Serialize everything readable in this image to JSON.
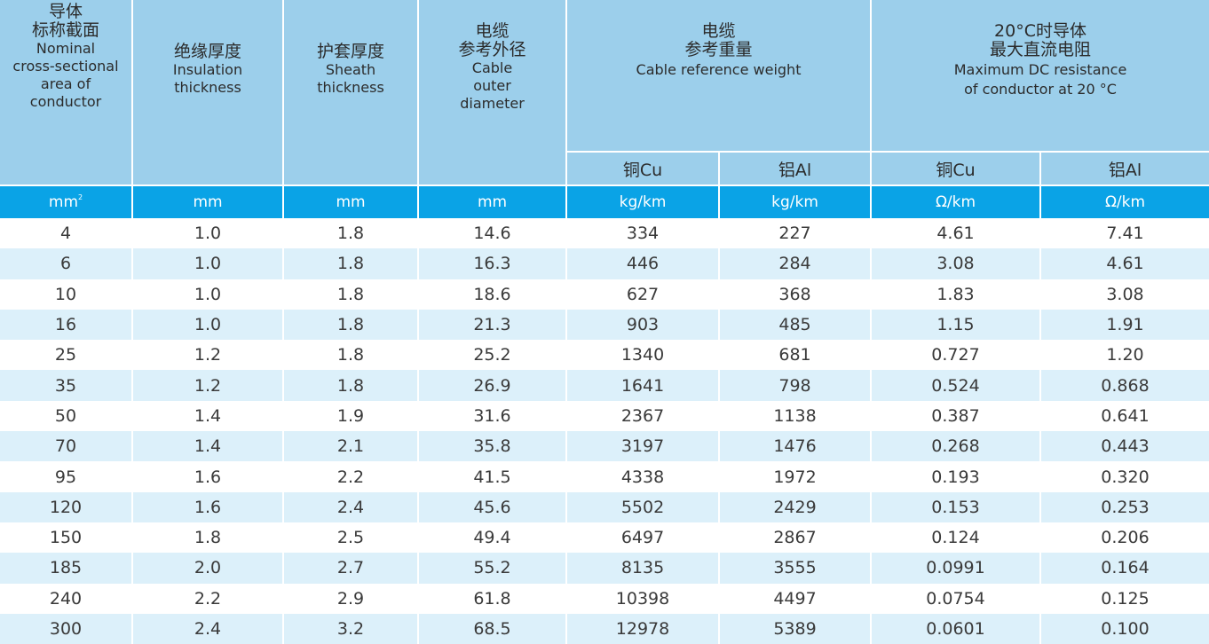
{
  "header": {
    "col1": {
      "zh1": "导体",
      "zh2": "标称截面",
      "en1": "Nominal",
      "en2": "cross-sectional",
      "en3": "area of",
      "en4": "conductor"
    },
    "col2": {
      "zh": "绝缘厚度",
      "en1": "Insulation",
      "en2": "thickness"
    },
    "col3": {
      "zh": "护套厚度",
      "en1": "Sheath",
      "en2": "thickness"
    },
    "col4": {
      "zh1": "电缆",
      "zh2": "参考外径",
      "en1": "Cable",
      "en2": "outer",
      "en3": "diameter"
    },
    "weight": {
      "zh1": "电缆",
      "zh2": "参考重量",
      "en": "Cable reference weight"
    },
    "resistance": {
      "zh1": "20°C时导体",
      "zh2": "最大直流电阻",
      "en1": "Maximum DC resistance",
      "en2": "of conductor at 20 °C"
    },
    "sub": {
      "weight_cu": "铜Cu",
      "weight_al": "铝Al",
      "res_cu": "铜Cu",
      "res_al": "铝Al"
    }
  },
  "units": {
    "area": "mm",
    "area_sup": "2",
    "insulation": "mm",
    "sheath": "mm",
    "diameter": "mm",
    "weight_cu": "kg/km",
    "weight_al": "kg/km",
    "res_cu": "Ω/km",
    "res_al": "Ω/km"
  },
  "rows": [
    [
      "4",
      "1.0",
      "1.8",
      "14.6",
      "334",
      "227",
      "4.61",
      "7.41"
    ],
    [
      "6",
      "1.0",
      "1.8",
      "16.3",
      "446",
      "284",
      "3.08",
      "4.61"
    ],
    [
      "10",
      "1.0",
      "1.8",
      "18.6",
      "627",
      "368",
      "1.83",
      "3.08"
    ],
    [
      "16",
      "1.0",
      "1.8",
      "21.3",
      "903",
      "485",
      "1.15",
      "1.91"
    ],
    [
      "25",
      "1.2",
      "1.8",
      "25.2",
      "1340",
      "681",
      "0.727",
      "1.20"
    ],
    [
      "35",
      "1.2",
      "1.8",
      "26.9",
      "1641",
      "798",
      "0.524",
      "0.868"
    ],
    [
      "50",
      "1.4",
      "1.9",
      "31.6",
      "2367",
      "1138",
      "0.387",
      "0.641"
    ],
    [
      "70",
      "1.4",
      "2.1",
      "35.8",
      "3197",
      "1476",
      "0.268",
      "0.443"
    ],
    [
      "95",
      "1.6",
      "2.2",
      "41.5",
      "4338",
      "1972",
      "0.193",
      "0.320"
    ],
    [
      "120",
      "1.6",
      "2.4",
      "45.6",
      "5502",
      "2429",
      "0.153",
      "0.253"
    ],
    [
      "150",
      "1.8",
      "2.5",
      "49.4",
      "6497",
      "2867",
      "0.124",
      "0.206"
    ],
    [
      "185",
      "2.0",
      "2.7",
      "55.2",
      "8135",
      "3555",
      "0.0991",
      "0.164"
    ],
    [
      "240",
      "2.2",
      "2.9",
      "61.8",
      "10398",
      "4497",
      "0.0754",
      "0.125"
    ],
    [
      "300",
      "2.4",
      "3.2",
      "68.5",
      "12978",
      "5389",
      "0.0601",
      "0.100"
    ]
  ],
  "colors": {
    "header_bg": "#9ccfeb",
    "units_bg": "#0aa3e6",
    "stripe_bg": "#dcf0fa"
  }
}
